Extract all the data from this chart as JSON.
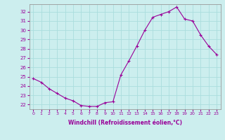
{
  "x": [
    0,
    1,
    2,
    3,
    4,
    5,
    6,
    7,
    8,
    9,
    10,
    11,
    12,
    13,
    14,
    15,
    16,
    17,
    18,
    19,
    20,
    21,
    22,
    23
  ],
  "y": [
    24.8,
    24.4,
    23.7,
    23.2,
    22.7,
    22.4,
    21.9,
    21.8,
    21.8,
    22.2,
    22.3,
    25.2,
    26.7,
    28.3,
    30.0,
    31.4,
    31.7,
    32.0,
    32.5,
    31.2,
    31.0,
    29.5,
    28.3,
    27.4
  ],
  "line_color": "#990099",
  "marker": "+",
  "bg_color": "#cceeee",
  "grid_color": "#aadddd",
  "xlabel": "Windchill (Refroidissement éolien,°C)",
  "xlabel_color": "#990099",
  "tick_color": "#990099",
  "ylabel_ticks": [
    22,
    23,
    24,
    25,
    26,
    27,
    28,
    29,
    30,
    31,
    32
  ],
  "xlim": [
    -0.5,
    23.5
  ],
  "ylim": [
    21.5,
    32.8
  ],
  "xtick_labels": [
    "0",
    "1",
    "2",
    "3",
    "4",
    "5",
    "6",
    "7",
    "8",
    "9",
    "10",
    "11",
    "12",
    "13",
    "14",
    "15",
    "16",
    "17",
    "18",
    "19",
    "20",
    "21",
    "22",
    "23"
  ]
}
